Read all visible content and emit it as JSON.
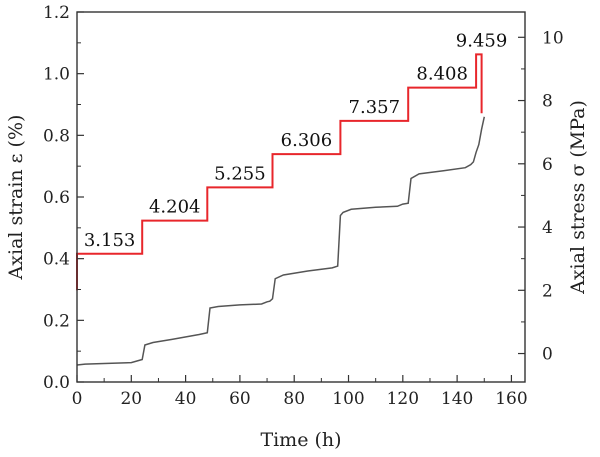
{
  "chart_data": {
    "type": "line",
    "xlabel": "Time (h)",
    "ylabel_left": "Axial strain ε (%)",
    "ylabel_right": "Axial stress σ (MPa)",
    "xlim": [
      0,
      165
    ],
    "ylim_left": [
      0,
      1.2
    ],
    "ylim_right": [
      -0.9,
      10.8
    ],
    "x_ticks": [
      "0",
      "20",
      "40",
      "60",
      "80",
      "100",
      "120",
      "140",
      "160"
    ],
    "y_left_ticks": [
      "0.0",
      "0.2",
      "0.4",
      "0.6",
      "0.8",
      "1.0",
      "1.2"
    ],
    "y_right_ticks": [
      "0",
      "2",
      "4",
      "6",
      "8",
      "10"
    ],
    "grid": false,
    "colors": {
      "stress": "#e8262b",
      "strain": "#555555",
      "axis": "#333333"
    },
    "series": [
      {
        "axis": "right",
        "x": [
          0,
          0,
          24,
          24,
          48,
          48,
          72,
          72,
          97,
          97,
          122,
          122,
          147,
          147,
          149,
          149
        ],
        "y": [
          2.0,
          3.153,
          3.153,
          4.204,
          4.204,
          5.255,
          5.255,
          6.306,
          6.306,
          7.357,
          7.357,
          8.408,
          8.408,
          9.459,
          9.459,
          7.6
        ]
      },
      {
        "axis": "left",
        "x": [
          0,
          3,
          10,
          20,
          24,
          25,
          28,
          35,
          45,
          48,
          49,
          52,
          60,
          68,
          70,
          71,
          72,
          73,
          76,
          85,
          94,
          96,
          97,
          98,
          101,
          110,
          118,
          120,
          122,
          123,
          126,
          135,
          143,
          145,
          146,
          147,
          148,
          149,
          150
        ],
        "y": [
          0.055,
          0.058,
          0.06,
          0.063,
          0.073,
          0.12,
          0.128,
          0.138,
          0.154,
          0.16,
          0.24,
          0.245,
          0.25,
          0.253,
          0.26,
          0.262,
          0.27,
          0.335,
          0.347,
          0.36,
          0.37,
          0.376,
          0.54,
          0.55,
          0.56,
          0.567,
          0.57,
          0.577,
          0.58,
          0.66,
          0.675,
          0.685,
          0.695,
          0.705,
          0.714,
          0.745,
          0.77,
          0.82,
          0.86
        ]
      }
    ],
    "annotations": [
      {
        "text": "3.153",
        "x": 12,
        "y": 3.153
      },
      {
        "text": "4.204",
        "x": 36,
        "y": 4.204
      },
      {
        "text": "5.255",
        "x": 60,
        "y": 5.255
      },
      {
        "text": "6.306",
        "x": 84.5,
        "y": 6.306
      },
      {
        "text": "7.357",
        "x": 109.5,
        "y": 7.357
      },
      {
        "text": "8.408",
        "x": 134.5,
        "y": 8.408
      },
      {
        "text": "9.459",
        "x": 149,
        "y": 9.459
      }
    ]
  }
}
